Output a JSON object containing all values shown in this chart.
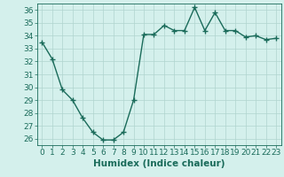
{
  "x": [
    0,
    1,
    2,
    3,
    4,
    5,
    6,
    7,
    8,
    9,
    10,
    11,
    12,
    13,
    14,
    15,
    16,
    17,
    18,
    19,
    20,
    21,
    22,
    23
  ],
  "y": [
    33.5,
    32.2,
    29.8,
    29.0,
    27.6,
    26.5,
    25.9,
    25.9,
    26.5,
    29.0,
    34.1,
    34.1,
    34.8,
    34.4,
    34.4,
    36.2,
    34.4,
    35.8,
    34.4,
    34.4,
    33.9,
    34.0,
    33.7,
    33.8
  ],
  "line_color": "#1a6b5a",
  "marker": "+",
  "marker_size": 4,
  "marker_lw": 1.0,
  "line_width": 1.0,
  "bg_color": "#d4f0ec",
  "grid_color": "#b0d4ce",
  "xlabel": "Humidex (Indice chaleur)",
  "ylim": [
    25.5,
    36.5
  ],
  "xlim": [
    -0.5,
    23.5
  ],
  "yticks": [
    26,
    27,
    28,
    29,
    30,
    31,
    32,
    33,
    34,
    35,
    36
  ],
  "xticks": [
    0,
    1,
    2,
    3,
    4,
    5,
    6,
    7,
    8,
    9,
    10,
    11,
    12,
    13,
    14,
    15,
    16,
    17,
    18,
    19,
    20,
    21,
    22,
    23
  ],
  "xtick_labels": [
    "0",
    "1",
    "2",
    "3",
    "4",
    "5",
    "6",
    "7",
    "8",
    "9",
    "10",
    "11",
    "12",
    "13",
    "14",
    "15",
    "16",
    "17",
    "18",
    "19",
    "20",
    "21",
    "22",
    "23"
  ],
  "tick_color": "#1a6b5a",
  "xlabel_color": "#1a6b5a",
  "xlabel_fontsize": 7.5,
  "tick_fontsize": 6.5
}
